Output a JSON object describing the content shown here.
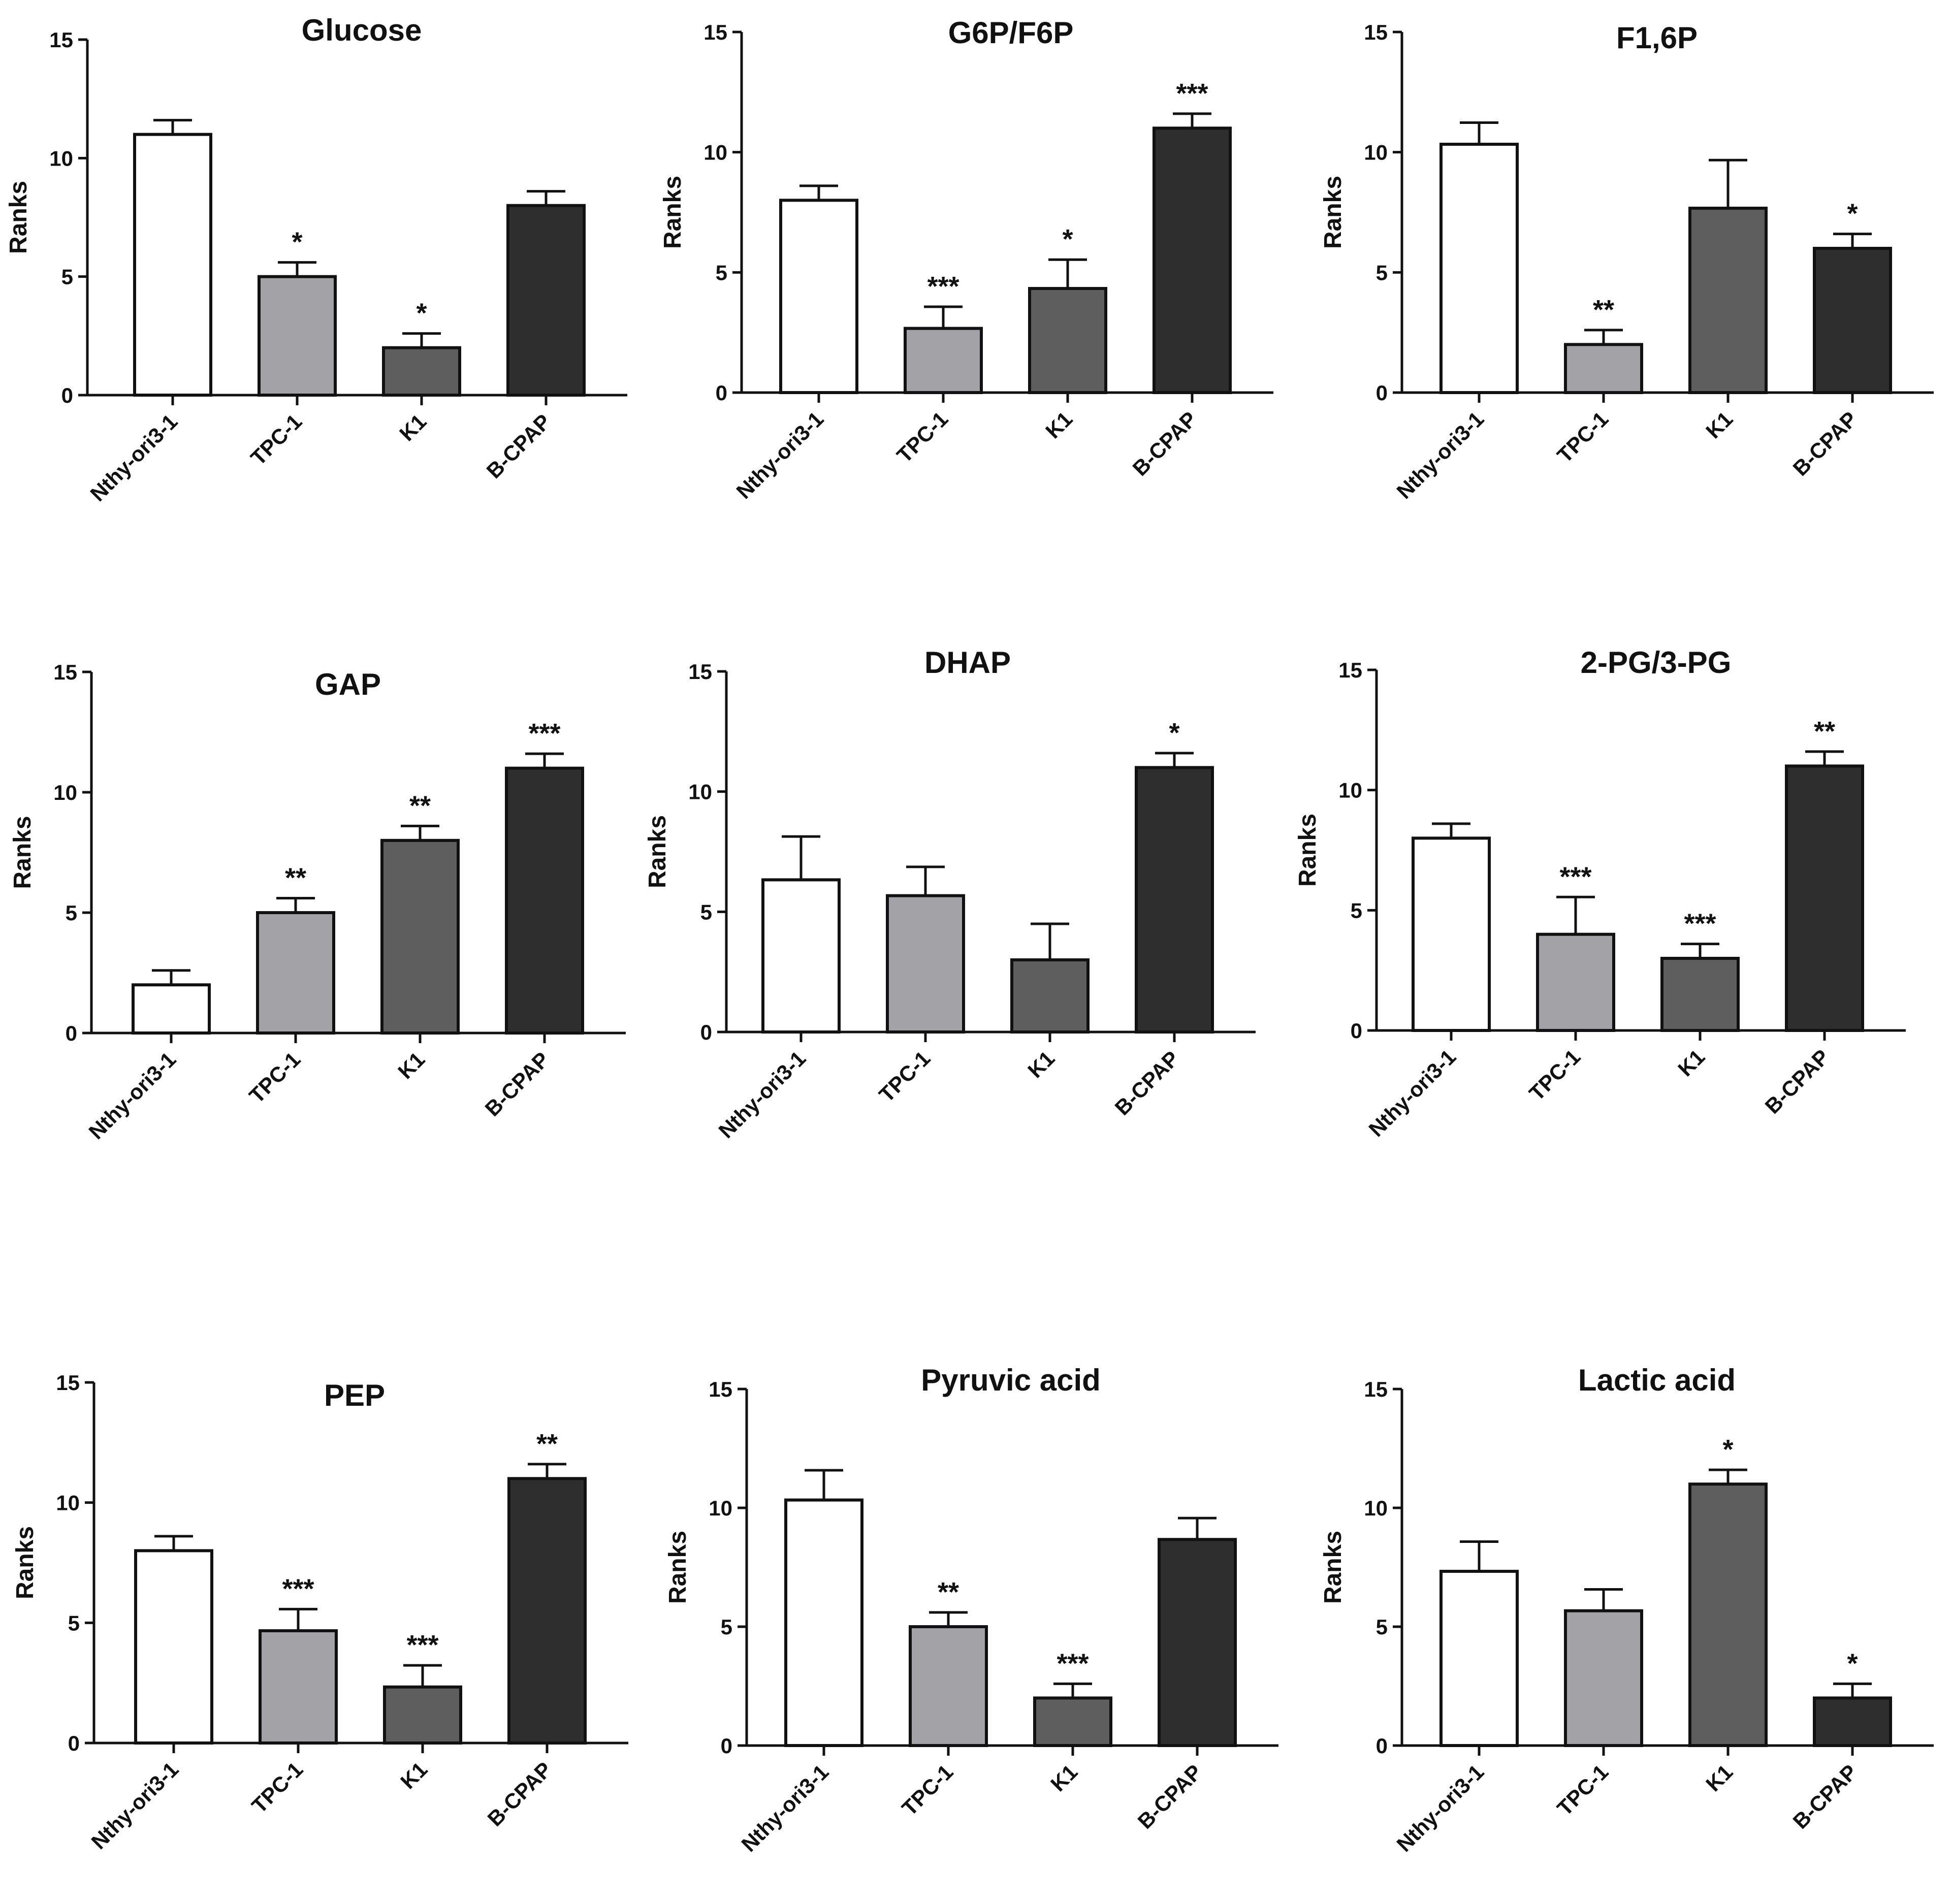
{
  "figure": {
    "ylabel": "Ranks",
    "categories": [
      "Nthy-ori3-1",
      "TPC-1",
      "K1",
      "B-CPAP"
    ],
    "bar_colors": [
      "#ffffff",
      "#a3a3a7",
      "#5e5e5e",
      "#2e2e2e"
    ],
    "y_ticks": [
      "0",
      "5",
      "10",
      "15"
    ]
  },
  "chart_data": [
    {
      "type": "bar",
      "title": "Glucose",
      "ylabel": "Ranks",
      "ylim": [
        0,
        15
      ],
      "categories": [
        "Nthy-ori3-1",
        "TPC-1",
        "K1",
        "B-CPAP"
      ],
      "values": [
        11,
        5,
        2,
        8
      ],
      "errors": [
        0.6,
        0.6,
        0.6,
        0.6
      ],
      "significance": [
        "",
        "*",
        "*",
        ""
      ]
    },
    {
      "type": "bar",
      "title": "G6P/F6P",
      "ylabel": "Ranks",
      "ylim": [
        0,
        15
      ],
      "categories": [
        "Nthy-ori3-1",
        "TPC-1",
        "K1",
        "B-CPAP"
      ],
      "values": [
        8,
        2.67,
        4.33,
        11
      ],
      "errors": [
        0.6,
        0.9,
        1.2,
        0.6
      ],
      "significance": [
        "",
        "***",
        "*",
        "***"
      ]
    },
    {
      "type": "bar",
      "title": "F1,6P",
      "ylabel": "Ranks",
      "ylim": [
        0,
        15
      ],
      "categories": [
        "Nthy-ori3-1",
        "TPC-1",
        "K1",
        "B-CPAP"
      ],
      "values": [
        10.33,
        2,
        7.67,
        6
      ],
      "errors": [
        0.9,
        0.6,
        2.0,
        0.6
      ],
      "significance": [
        "",
        "**",
        "",
        "*"
      ]
    },
    {
      "type": "bar",
      "title": "GAP",
      "ylabel": "Ranks",
      "ylim": [
        0,
        15
      ],
      "categories": [
        "Nthy-ori3-1",
        "TPC-1",
        "K1",
        "B-CPAP"
      ],
      "values": [
        2,
        5,
        8,
        11
      ],
      "errors": [
        0.6,
        0.6,
        0.6,
        0.6
      ],
      "significance": [
        "",
        "**",
        "**",
        "***"
      ]
    },
    {
      "type": "bar",
      "title": "DHAP",
      "ylabel": "Ranks",
      "ylim": [
        0,
        15
      ],
      "categories": [
        "Nthy-ori3-1",
        "TPC-1",
        "K1",
        "B-CPAP"
      ],
      "values": [
        6.33,
        5.67,
        3,
        11
      ],
      "errors": [
        1.8,
        1.2,
        1.5,
        0.6
      ],
      "significance": [
        "",
        "",
        "",
        "*"
      ]
    },
    {
      "type": "bar",
      "title": "2-PG/3-PG",
      "ylabel": "Ranks",
      "ylim": [
        0,
        15
      ],
      "categories": [
        "Nthy-ori3-1",
        "TPC-1",
        "K1",
        "B-CPAP"
      ],
      "values": [
        8,
        4,
        3,
        11
      ],
      "errors": [
        0.6,
        1.55,
        0.6,
        0.6
      ],
      "significance": [
        "",
        "***",
        "***",
        "**"
      ]
    },
    {
      "type": "bar",
      "title": "PEP",
      "ylabel": "Ranks",
      "ylim": [
        0,
        15
      ],
      "categories": [
        "Nthy-ori3-1",
        "TPC-1",
        "K1",
        "B-CPAP"
      ],
      "values": [
        8,
        4.67,
        2.33,
        11
      ],
      "errors": [
        0.6,
        0.9,
        0.9,
        0.6
      ],
      "significance": [
        "",
        "***",
        "***",
        "**"
      ]
    },
    {
      "type": "bar",
      "title": "Pyruvic acid",
      "ylabel": "Ranks",
      "ylim": [
        0,
        15
      ],
      "categories": [
        "Nthy-ori3-1",
        "TPC-1",
        "K1",
        "B-CPAP"
      ],
      "values": [
        10.33,
        5,
        2,
        8.67
      ],
      "errors": [
        1.25,
        0.6,
        0.6,
        0.9
      ],
      "significance": [
        "",
        "**",
        "***",
        ""
      ]
    },
    {
      "type": "bar",
      "title": "Lactic acid",
      "ylabel": "Ranks",
      "ylim": [
        0,
        15
      ],
      "categories": [
        "Nthy-ori3-1",
        "TPC-1",
        "K1",
        "B-CPAP"
      ],
      "values": [
        7.33,
        5.67,
        11,
        2
      ],
      "errors": [
        1.25,
        0.9,
        0.6,
        0.6
      ],
      "significance": [
        "",
        "",
        "*",
        "*"
      ]
    }
  ]
}
